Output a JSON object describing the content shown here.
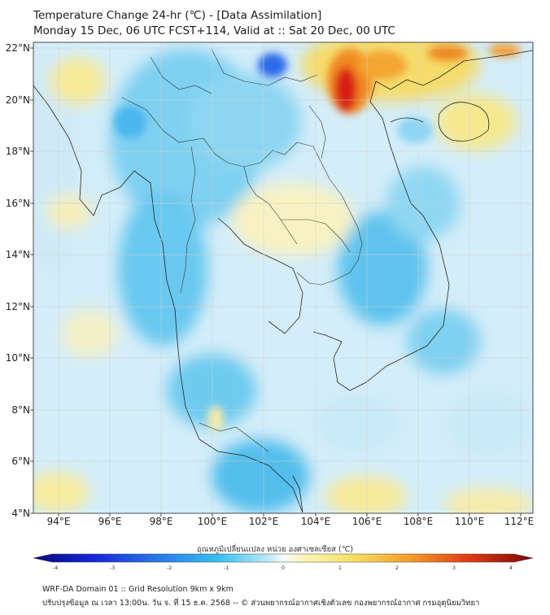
{
  "title": {
    "line1": "Temperature Change 24-hr (℃) - [Data Assimilation]",
    "line2": "Monday 15 Dec, 06 UTC FCST+114, Valid at :: Sat 20 Dec, 00 UTC"
  },
  "axes": {
    "x_ticks": [
      "94°E",
      "96°E",
      "98°E",
      "100°E",
      "102°E",
      "104°E",
      "106°E",
      "108°E",
      "110°E",
      "112°E"
    ],
    "y_ticks": [
      "22°N",
      "20°N",
      "18°N",
      "16°N",
      "14°N",
      "12°N",
      "10°N",
      "8°N",
      "6°N",
      "4°N"
    ]
  },
  "colorbar": {
    "title": "อุณหภูมิเปลี่ยนแปลง หน่วย องศาเซลเซียส (℃)",
    "ticks": [
      "-4",
      "-3",
      "-2",
      "-1",
      "0",
      "1",
      "2",
      "3",
      "4"
    ]
  },
  "footer": {
    "line1": "WRF-DA Domain 01 :: Grid Resolution 9km x 9km",
    "line2": "ปรับปรุงข้อมูล ณ เวลา 13:00น. วัน จ. ที่ 15 ธ.ค. 2568 -- © ส่วนพยากรณ์อากาศเชิงตัวเลข กองพยากรณ์อากาศ กรมอุตุนิยมวิทยา"
  },
  "colors": {
    "cold_strong": "#1f3fd6",
    "cold": "#3ab0e8",
    "neutral": "#e4f3fb",
    "warm": "#f6eca2",
    "hot": "#f39a22",
    "hottest": "#d81a1a"
  }
}
